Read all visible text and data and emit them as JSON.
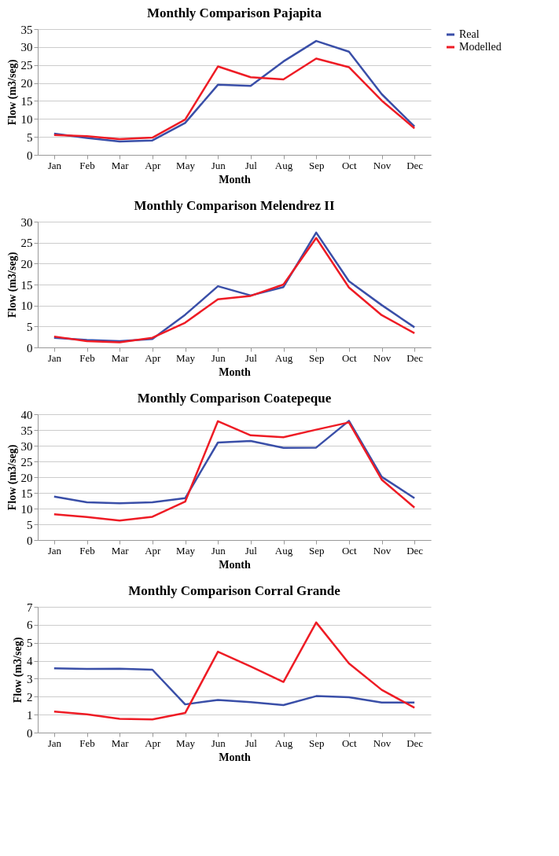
{
  "chart_data": [
    {
      "type": "line",
      "title": "Monthly Comparison Pajapita",
      "xlabel": "Month",
      "ylabel": "Flow (m3/seg)",
      "categories": [
        "Jan",
        "Feb",
        "Mar",
        "Apr",
        "May",
        "Jun",
        "Jul",
        "Aug",
        "Sep",
        "Oct",
        "Nov",
        "Dec"
      ],
      "ylim": [
        0,
        35
      ],
      "yticks": [
        0,
        5,
        10,
        15,
        20,
        25,
        30,
        35
      ],
      "grid": "y",
      "legend": "right",
      "series": [
        {
          "name": "Real",
          "color": "#3a4fa8",
          "values": [
            5.9,
            4.7,
            3.7,
            4.0,
            8.9,
            19.5,
            19.2,
            26.0,
            31.7,
            28.7,
            16.9,
            7.9
          ]
        },
        {
          "name": "Modelled",
          "color": "#ee1c25",
          "values": [
            5.5,
            5.2,
            4.4,
            4.8,
            9.8,
            24.6,
            21.6,
            21.0,
            26.8,
            24.4,
            15.1,
            7.4
          ]
        }
      ]
    },
    {
      "type": "line",
      "title": "Monthly Comparison Melendrez II",
      "xlabel": "Month",
      "ylabel": "Flow (m3/seg)",
      "categories": [
        "Jan",
        "Feb",
        "Mar",
        "Apr",
        "May",
        "Jun",
        "Jul",
        "Aug",
        "Sep",
        "Oct",
        "Nov",
        "Dec"
      ],
      "ylim": [
        0,
        30
      ],
      "yticks": [
        0,
        5,
        10,
        15,
        20,
        25,
        30
      ],
      "grid": "y",
      "legend": "right",
      "series": [
        {
          "name": "Real",
          "color": "#3a4fa8",
          "values": [
            2.3,
            1.8,
            1.5,
            2.0,
            7.8,
            14.6,
            12.4,
            14.4,
            27.4,
            15.8,
            10.1,
            4.8
          ]
        },
        {
          "name": "Modelled",
          "color": "#ee1c25",
          "values": [
            2.6,
            1.5,
            1.2,
            2.3,
            5.9,
            11.5,
            12.3,
            15.0,
            26.1,
            14.3,
            7.7,
            3.4
          ]
        }
      ]
    },
    {
      "type": "line",
      "title": "Monthly Comparison Coatepeque",
      "xlabel": "Month",
      "ylabel": "Flow (m3/seg)",
      "categories": [
        "Jan",
        "Feb",
        "Mar",
        "Apr",
        "May",
        "Jun",
        "Jul",
        "Aug",
        "Sep",
        "Oct",
        "Nov",
        "Dec"
      ],
      "ylim": [
        0,
        40
      ],
      "yticks": [
        0,
        5,
        10,
        15,
        20,
        25,
        30,
        35,
        40
      ],
      "grid": "y",
      "legend": "right",
      "series": [
        {
          "name": "Real",
          "color": "#3a4fa8",
          "values": [
            13.8,
            12.0,
            11.7,
            12.0,
            13.3,
            31.0,
            31.5,
            29.3,
            29.4,
            37.9,
            20.1,
            13.3
          ]
        },
        {
          "name": "Modelled",
          "color": "#ee1c25",
          "values": [
            8.2,
            7.3,
            6.2,
            7.4,
            12.2,
            37.8,
            33.3,
            32.7,
            35.1,
            37.4,
            19.2,
            10.3
          ]
        }
      ]
    },
    {
      "type": "line",
      "title": "Monthly Comparison Corral Grande",
      "xlabel": "Month",
      "ylabel": "Flow (m3/seg)",
      "categories": [
        "Jan",
        "Feb",
        "Mar",
        "Apr",
        "May",
        "Jun",
        "Jul",
        "Aug",
        "Sep",
        "Oct",
        "Nov",
        "Dec"
      ],
      "ylim": [
        0,
        7
      ],
      "yticks": [
        0,
        1,
        2,
        3,
        4,
        5,
        6,
        7
      ],
      "grid": "y",
      "legend": "right",
      "series": [
        {
          "name": "Real",
          "color": "#3a4fa8",
          "values": [
            3.58,
            3.54,
            3.56,
            3.5,
            1.57,
            1.82,
            1.69,
            1.53,
            2.03,
            1.97,
            1.67,
            1.67
          ]
        },
        {
          "name": "Modelled",
          "color": "#ee1c25",
          "values": [
            1.17,
            1.02,
            0.77,
            0.73,
            1.09,
            4.5,
            3.68,
            2.82,
            6.13,
            3.85,
            2.38,
            1.38
          ]
        }
      ]
    }
  ]
}
